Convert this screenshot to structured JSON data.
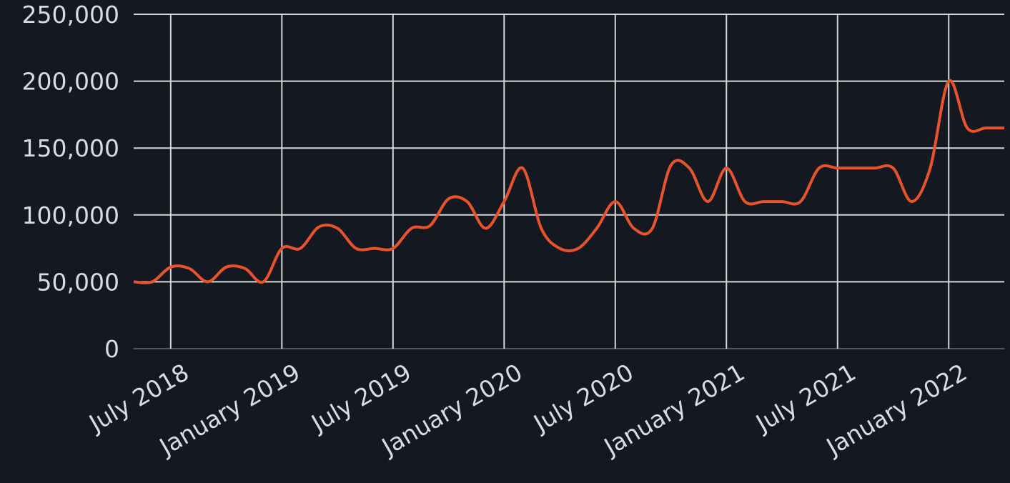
{
  "chart_data": {
    "type": "line",
    "x": [
      "2018-05",
      "2018-06",
      "2018-07",
      "2018-08",
      "2018-09",
      "2018-10",
      "2018-11",
      "2018-12",
      "2019-01",
      "2019-02",
      "2019-03",
      "2019-04",
      "2019-05",
      "2019-06",
      "2019-07",
      "2019-08",
      "2019-09",
      "2019-10",
      "2019-11",
      "2019-12",
      "2020-01",
      "2020-02",
      "2020-03",
      "2020-04",
      "2020-05",
      "2020-06",
      "2020-07",
      "2020-08",
      "2020-09",
      "2020-10",
      "2020-11",
      "2020-12",
      "2021-01",
      "2021-02",
      "2021-03",
      "2021-04",
      "2021-05",
      "2021-06",
      "2021-07",
      "2021-08",
      "2021-09",
      "2021-10",
      "2021-11",
      "2021-12",
      "2022-01",
      "2022-02",
      "2022-03",
      "2022-04"
    ],
    "series": [
      {
        "color": "#e8532b",
        "values": [
          50000,
          50000,
          61000,
          60000,
          50000,
          61000,
          60000,
          50000,
          75000,
          75000,
          91000,
          90000,
          75000,
          75000,
          75000,
          90000,
          92000,
          112000,
          110000,
          90000,
          110000,
          135000,
          90000,
          75000,
          75000,
          90000,
          110000,
          90000,
          90000,
          137000,
          135000,
          110000,
          135000,
          110000,
          110000,
          110000,
          110000,
          135000,
          135000,
          135000,
          135000,
          135000,
          110000,
          135000,
          200000,
          165000,
          165000,
          165000
        ]
      }
    ],
    "xlim": [
      "2018-05",
      "2022-04"
    ],
    "xticks": [
      {
        "value": "2018-07",
        "label": "July 2018"
      },
      {
        "value": "2019-01",
        "label": "January 2019"
      },
      {
        "value": "2019-07",
        "label": "July 2019"
      },
      {
        "value": "2020-01",
        "label": "January 2020"
      },
      {
        "value": "2020-07",
        "label": "July 2020"
      },
      {
        "value": "2021-01",
        "label": "January 2021"
      },
      {
        "value": "2021-07",
        "label": "July 2021"
      },
      {
        "value": "2022-01",
        "label": "January 2022"
      }
    ],
    "ylim": [
      0,
      250000
    ],
    "yticks": [
      0,
      {
        "value": 50000,
        "label": "50,000"
      },
      {
        "value": 100000,
        "label": "100,000"
      },
      {
        "value": 150000,
        "label": "150,000"
      },
      {
        "value": 200000,
        "label": "200,000"
      },
      {
        "value": 250000,
        "label": "250,000"
      }
    ],
    "grid": true
  }
}
